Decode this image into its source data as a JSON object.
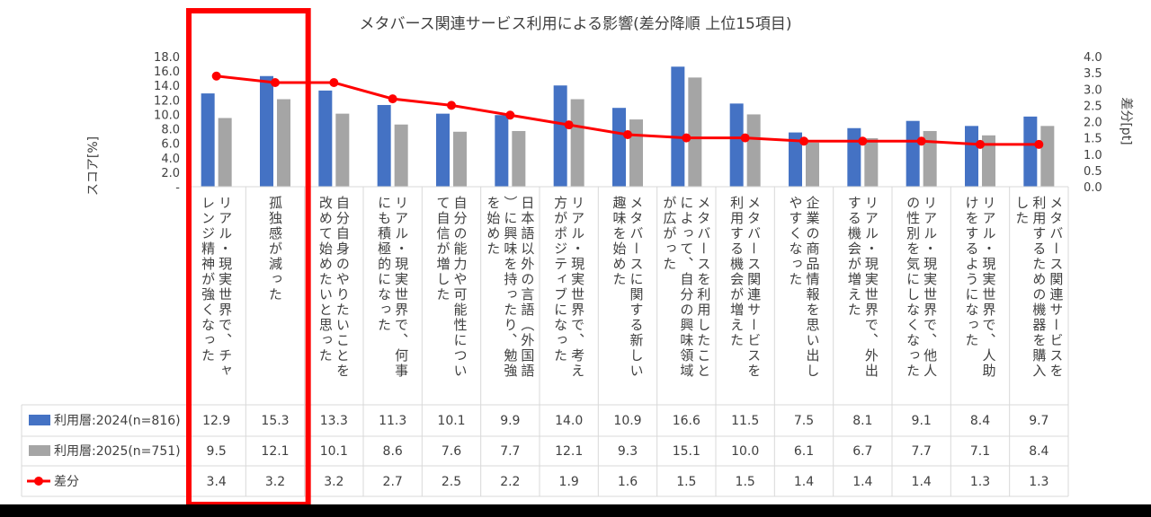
{
  "chart_data": {
    "type": "bar",
    "title": "メタバース関連サービス利用による影響(差分降順 上位15項目)",
    "ylabel": "スコア[%]",
    "y2label": "差分[pt]",
    "ylim": [
      0,
      18
    ],
    "y2lim": [
      0,
      4
    ],
    "yticks": [
      "-",
      "2.0",
      "4.0",
      "6.0",
      "8.0",
      "10.0",
      "12.0",
      "14.0",
      "16.0",
      "18.0"
    ],
    "y2ticks": [
      "0.0",
      "0.5",
      "1.0",
      "1.5",
      "2.0",
      "2.5",
      "3.0",
      "3.5",
      "4.0"
    ],
    "grid": false,
    "highlight_index": [
      0,
      1
    ],
    "categories": [
      "リアル・現実世界で、チャレンジ精神が強くなった",
      "孤独感が減った",
      "自分自身のやりたいことを改めて始めたいと思った",
      "リアル・現実世界で、何事にも積極的になった",
      "自分の能力や可能性について自信が増した",
      "日本語以外の言語（外国語）に興味を持ったり、勉強を始めた",
      "リアル・現実世界で、考え方がポジティブになった",
      "メタバースに関する新しい趣味を始めた",
      "メタバースを利用したことによって、自分の興味領域が広がった",
      "メタバース関連サービスを利用する機会が増えた",
      "企業の商品情報を思い出しやすくなった",
      "リアル・現実世界で、外出する機会が増えた",
      "リアル・現実世界で、他人の性別を気にしなくなった",
      "リアル・現実世界で、人助けをするようになった",
      "メタバース関連サービスを利用するための機器を購入した"
    ],
    "series": [
      {
        "name": "利用層:2024(n=816)",
        "kind": "bar",
        "axis": "left",
        "color": "#4472C4",
        "values": [
          12.9,
          15.3,
          13.3,
          11.3,
          10.1,
          9.9,
          14.0,
          10.9,
          16.6,
          11.5,
          7.5,
          8.1,
          9.1,
          8.4,
          9.7
        ]
      },
      {
        "name": "利用層:2025(n=751)",
        "kind": "bar",
        "axis": "left",
        "color": "#A5A5A5",
        "values": [
          9.5,
          12.1,
          10.1,
          8.6,
          7.6,
          7.7,
          12.1,
          9.3,
          15.1,
          10.0,
          6.1,
          6.7,
          7.7,
          7.1,
          8.4
        ]
      },
      {
        "name": "差分",
        "kind": "line",
        "axis": "right",
        "color": "#FF0000",
        "values": [
          3.4,
          3.2,
          3.2,
          2.7,
          2.5,
          2.2,
          1.9,
          1.6,
          1.5,
          1.5,
          1.4,
          1.4,
          1.4,
          1.3,
          1.3
        ]
      }
    ],
    "table": {
      "rows": [
        [
          "12.9",
          "15.3",
          "13.3",
          "11.3",
          "10.1",
          "9.9",
          "14.0",
          "10.9",
          "16.6",
          "11.5",
          "7.5",
          "8.1",
          "9.1",
          "8.4",
          "9.7"
        ],
        [
          "9.5",
          "12.1",
          "10.1",
          "8.6",
          "7.6",
          "7.7",
          "12.1",
          "9.3",
          "15.1",
          "10.0",
          "6.1",
          "6.7",
          "7.7",
          "7.1",
          "8.4"
        ],
        [
          "3.4",
          "3.2",
          "3.2",
          "2.7",
          "2.5",
          "2.2",
          "1.9",
          "1.6",
          "1.5",
          "1.5",
          "1.4",
          "1.4",
          "1.4",
          "1.3",
          "1.3"
        ]
      ]
    },
    "highlight_color": "#FF0000"
  }
}
